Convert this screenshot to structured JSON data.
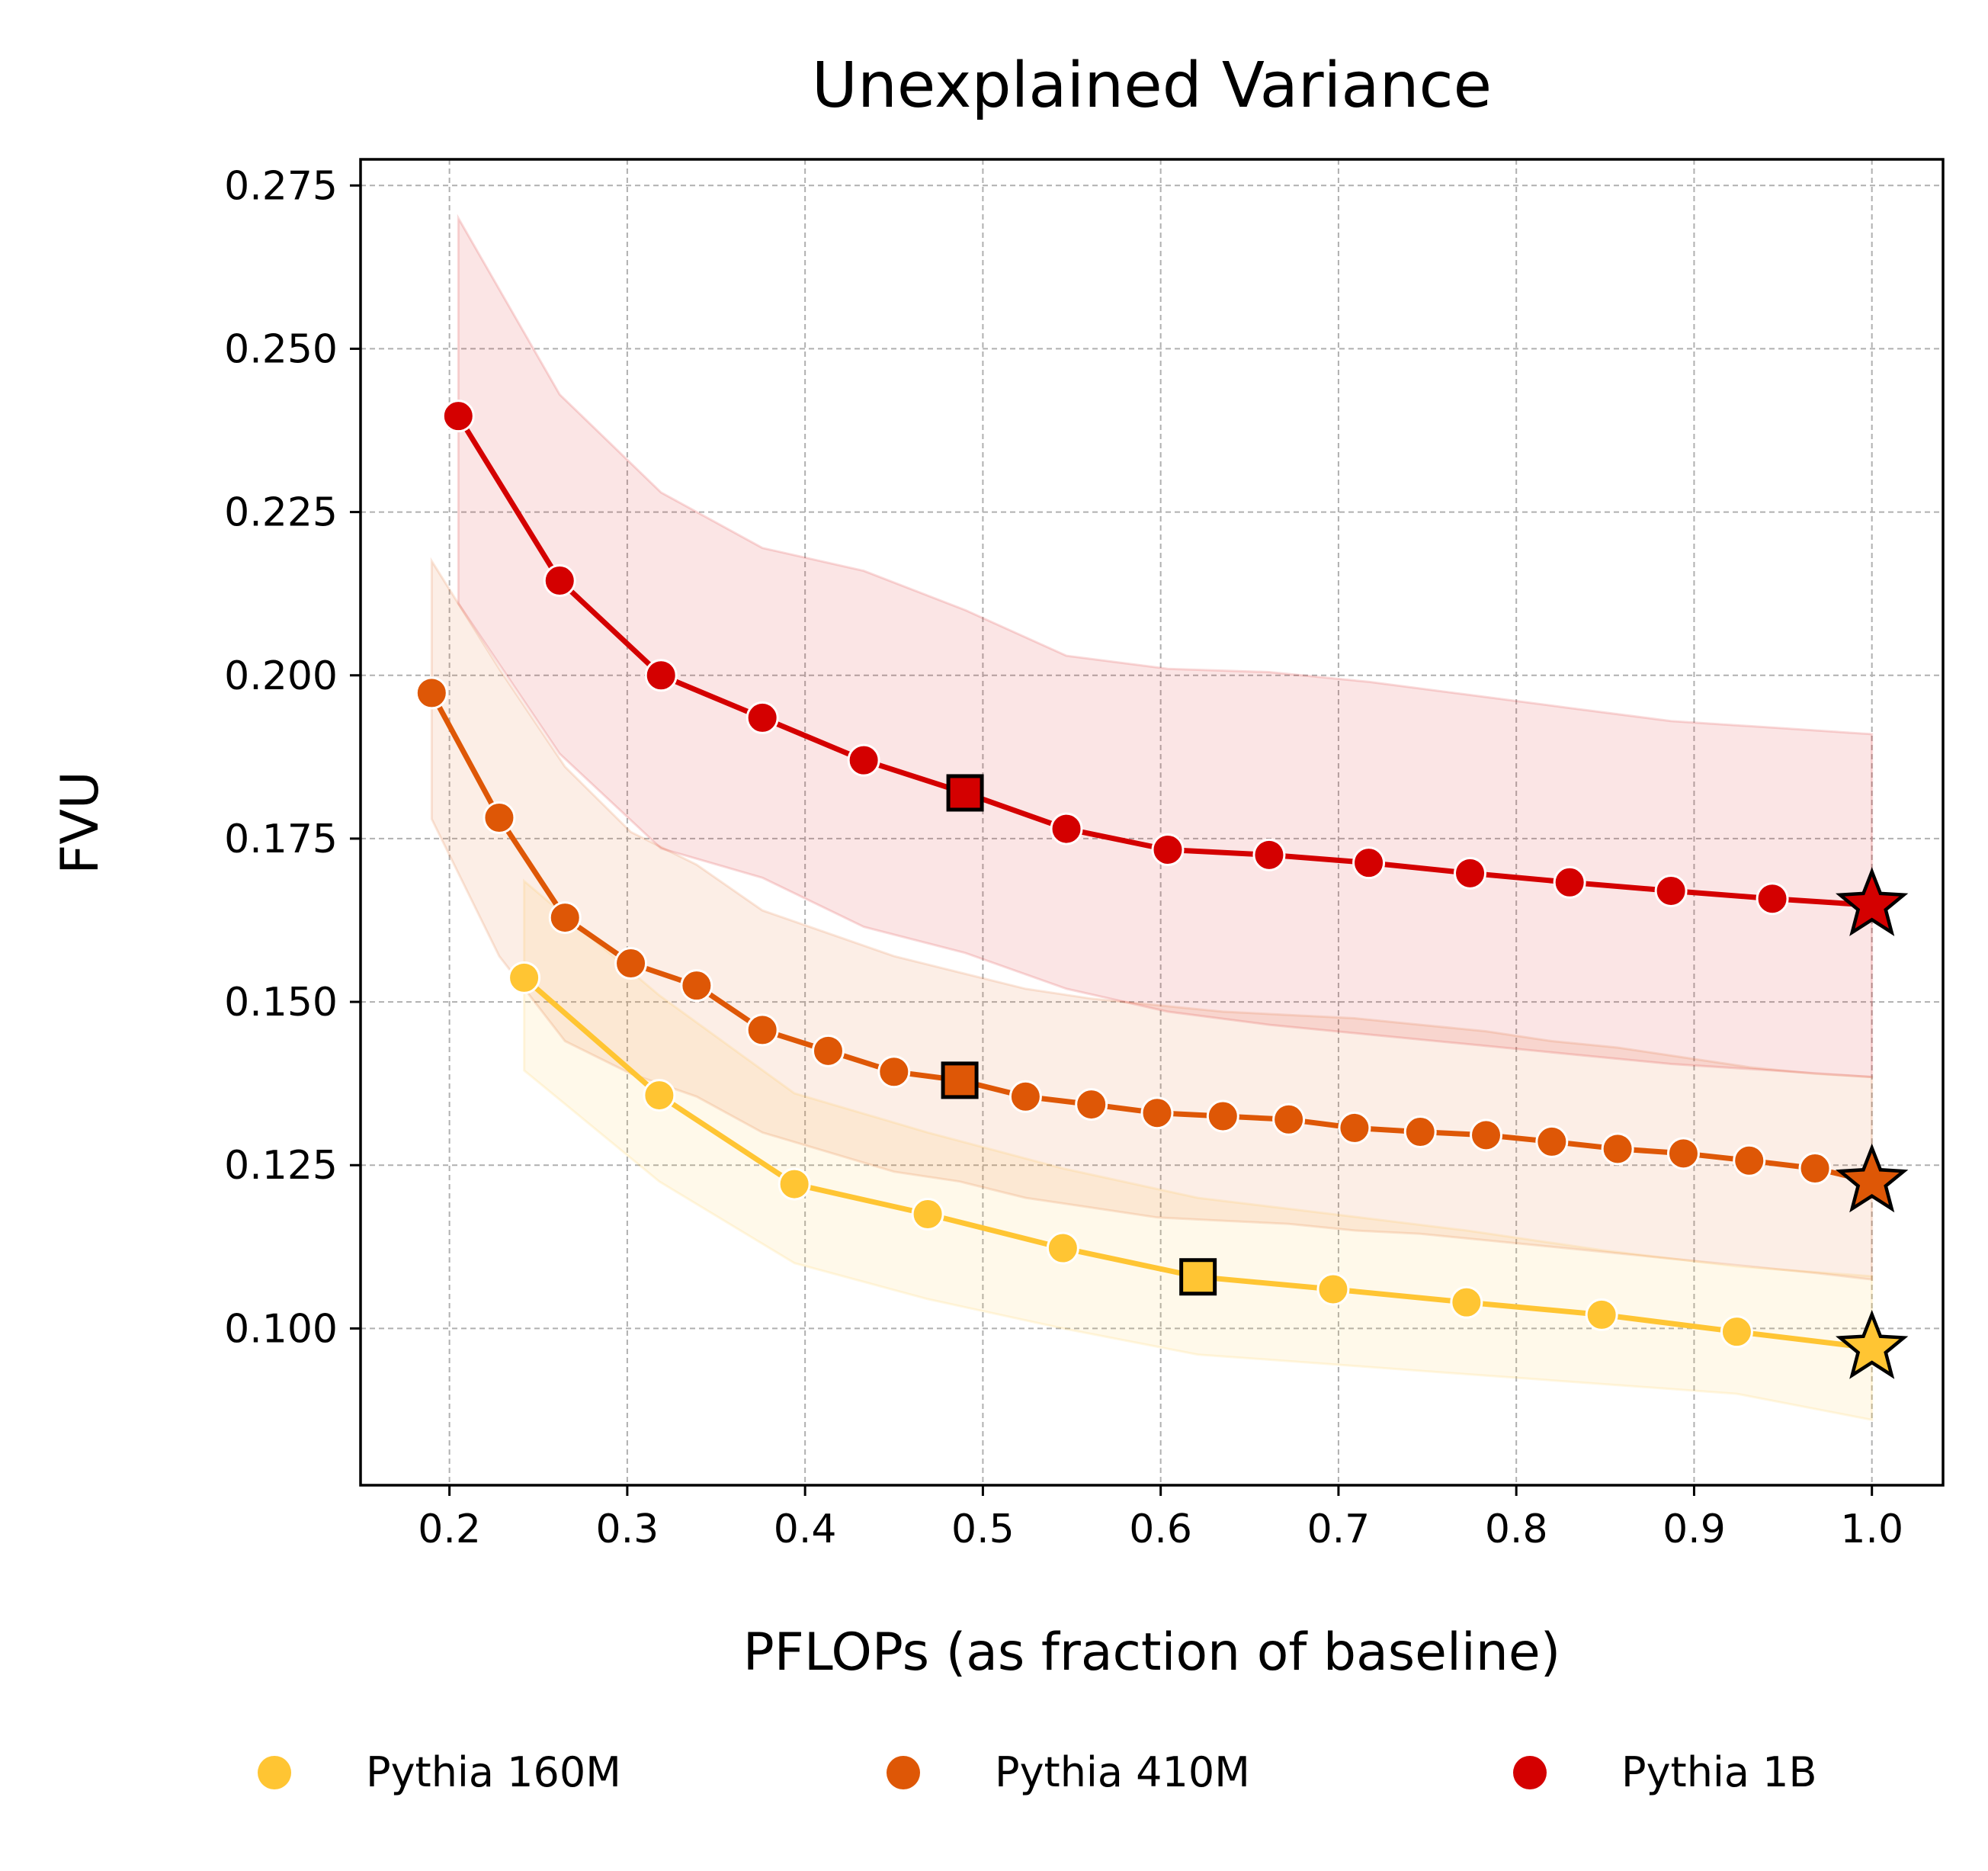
{
  "chart_data": {
    "type": "line",
    "title": "Unexplained Variance",
    "xlabel": "PFLOPs (as fraction of baseline)",
    "ylabel": "FVU",
    "xlim": [
      0.15,
      1.04
    ],
    "ylim": [
      0.076,
      0.279
    ],
    "xticks": [
      0.2,
      0.3,
      0.4,
      0.5,
      0.6,
      0.7,
      0.8,
      0.9,
      1.0
    ],
    "xtick_labels": [
      "0.2",
      "0.3",
      "0.4",
      "0.5",
      "0.6",
      "0.7",
      "0.8",
      "0.9",
      "1.0"
    ],
    "yticks": [
      0.1,
      0.125,
      0.15,
      0.175,
      0.2,
      0.225,
      0.25,
      0.275
    ],
    "ytick_labels": [
      "0.100",
      "0.125",
      "0.150",
      "0.175",
      "0.200",
      "0.225",
      "0.250",
      "0.275"
    ],
    "grid": true,
    "legend_position": "bottom",
    "series": [
      {
        "name": "Pythia 160M",
        "color": "#FFC533",
        "x": [
          0.242,
          0.318,
          0.394,
          0.469,
          0.545,
          0.621,
          0.697,
          0.772,
          0.848,
          0.924,
          1.0
        ],
        "y": [
          0.1537,
          0.1357,
          0.1221,
          0.1175,
          0.1123,
          0.1079,
          0.106,
          0.104,
          0.1021,
          0.0995,
          0.097
        ],
        "band_upper": [
          0.1685,
          0.151,
          0.136,
          0.13,
          0.1245,
          0.12,
          0.1175,
          0.115,
          0.112,
          0.1095,
          0.108
        ],
        "band_lower": [
          0.1395,
          0.1225,
          0.11,
          0.1045,
          0.1,
          0.096,
          0.0945,
          0.093,
          0.0915,
          0.09,
          0.086
        ],
        "highlight_square_index": 5,
        "star_index": 10
      },
      {
        "name": "Pythia 410M",
        "color": "#DE5706",
        "x": [
          0.19,
          0.228,
          0.265,
          0.302,
          0.339,
          0.376,
          0.413,
          0.45,
          0.487,
          0.524,
          0.561,
          0.598,
          0.635,
          0.672,
          0.709,
          0.746,
          0.783,
          0.82,
          0.857,
          0.894,
          0.931,
          0.968,
          1.0
        ],
        "y": [
          0.1973,
          0.1782,
          0.1629,
          0.1559,
          0.1525,
          0.1457,
          0.1425,
          0.1393,
          0.138,
          0.1355,
          0.1343,
          0.133,
          0.1325,
          0.132,
          0.1307,
          0.1301,
          0.1296,
          0.1286,
          0.1275,
          0.1268,
          0.1257,
          0.1245,
          0.1225
        ],
        "band_upper": [
          0.2175,
          0.201,
          0.186,
          0.176,
          0.171,
          0.164,
          0.1605,
          0.157,
          0.1545,
          0.152,
          0.1505,
          0.1495,
          0.1485,
          0.148,
          0.1475,
          0.1465,
          0.1455,
          0.144,
          0.143,
          0.1415,
          0.14,
          0.139,
          0.1385
        ],
        "band_lower": [
          0.178,
          0.157,
          0.144,
          0.139,
          0.1355,
          0.13,
          0.127,
          0.124,
          0.1225,
          0.12,
          0.1185,
          0.117,
          0.1165,
          0.116,
          0.115,
          0.1145,
          0.1135,
          0.1125,
          0.1115,
          0.1105,
          0.1095,
          0.1085,
          0.1075
        ],
        "highlight_square_index": 8,
        "star_index": 22
      },
      {
        "name": "Pythia 1B",
        "color": "#D40000",
        "x": [
          0.205,
          0.262,
          0.319,
          0.376,
          0.433,
          0.49,
          0.547,
          0.604,
          0.661,
          0.717,
          0.774,
          0.83,
          0.887,
          0.944,
          1.0
        ],
        "y": [
          0.2397,
          0.2145,
          0.2,
          0.1935,
          0.187,
          0.182,
          0.1765,
          0.1733,
          0.1725,
          0.1713,
          0.1697,
          0.1683,
          0.167,
          0.1658,
          0.1648
        ],
        "band_upper": [
          0.27,
          0.243,
          0.228,
          0.2195,
          0.216,
          0.21,
          0.203,
          0.201,
          0.2005,
          0.199,
          0.197,
          0.195,
          0.193,
          0.192,
          0.191
        ],
        "band_lower": [
          0.211,
          0.188,
          0.1735,
          0.169,
          0.1615,
          0.1575,
          0.152,
          0.1485,
          0.1465,
          0.145,
          0.1435,
          0.142,
          0.1405,
          0.1395,
          0.1385
        ],
        "highlight_square_index": 5,
        "star_index": 14
      }
    ]
  }
}
